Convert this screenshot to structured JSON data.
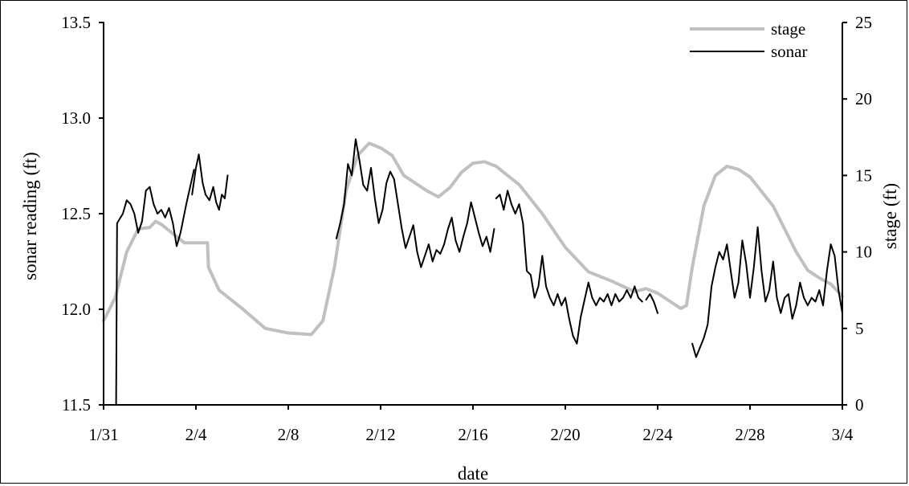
{
  "chart_data": {
    "type": "line",
    "title": "",
    "xlabel": "date",
    "ylabel_left": "sonar reading (ft)",
    "ylabel_right": "stage (ft)",
    "x_range": [
      "1/31",
      "3/4"
    ],
    "x_ticks": [
      "1/31",
      "2/4",
      "2/8",
      "2/12",
      "2/16",
      "2/20",
      "2/24",
      "2/28",
      "3/4"
    ],
    "ylim_left": [
      11.5,
      13.5
    ],
    "y_ticks_left": [
      "11.5",
      "12.0",
      "12.5",
      "13.0",
      "13.5"
    ],
    "ylim_right": [
      0,
      25
    ],
    "y_ticks_right": [
      "0",
      "5",
      "10",
      "15",
      "20",
      "25"
    ],
    "grid": false,
    "legend_position": "top-right",
    "series": [
      {
        "name": "stage",
        "axis": "right",
        "color": "#c0c0c0",
        "points": [
          [
            "1/31 00:00",
            5.5
          ],
          [
            "1/31 12:00",
            7.0
          ],
          [
            "2/1 00:00",
            10.0
          ],
          [
            "2/1 12:00",
            11.5
          ],
          [
            "2/2 00:00",
            11.6
          ],
          [
            "2/2 06:00",
            12.0
          ],
          [
            "2/2 12:00",
            11.8
          ],
          [
            "2/3 00:00",
            11.2
          ],
          [
            "2/3 12:00",
            10.6
          ],
          [
            "2/4 00:00",
            10.6
          ],
          [
            "2/4 12:00",
            10.6
          ],
          [
            "2/4 13:00",
            9.0
          ],
          [
            "2/5 00:00",
            7.5
          ],
          [
            "2/6 00:00",
            6.3
          ],
          [
            "2/7 00:00",
            5.0
          ],
          [
            "2/8 00:00",
            4.7
          ],
          [
            "2/9 00:00",
            4.6
          ],
          [
            "2/9 12:00",
            5.5
          ],
          [
            "2/10 00:00",
            9.0
          ],
          [
            "2/10 12:00",
            14.0
          ],
          [
            "2/11 00:00",
            16.3
          ],
          [
            "2/11 12:00",
            17.1
          ],
          [
            "2/12 00:00",
            16.8
          ],
          [
            "2/12 12:00",
            16.3
          ],
          [
            "2/13 00:00",
            15.0
          ],
          [
            "2/14 00:00",
            14.0
          ],
          [
            "2/14 12:00",
            13.6
          ],
          [
            "2/15 00:00",
            14.2
          ],
          [
            "2/15 12:00",
            15.2
          ],
          [
            "2/16 00:00",
            15.8
          ],
          [
            "2/16 12:00",
            15.9
          ],
          [
            "2/17 00:00",
            15.6
          ],
          [
            "2/18 00:00",
            14.4
          ],
          [
            "2/19 00:00",
            12.5
          ],
          [
            "2/20 00:00",
            10.3
          ],
          [
            "2/21 00:00",
            8.7
          ],
          [
            "2/22 00:00",
            8.1
          ],
          [
            "2/23 00:00",
            7.4
          ],
          [
            "2/23 12:00",
            7.6
          ],
          [
            "2/24 00:00",
            7.3
          ],
          [
            "2/24 12:00",
            6.8
          ],
          [
            "2/25 00:00",
            6.3
          ],
          [
            "2/25 06:00",
            6.5
          ],
          [
            "2/25 12:00",
            9.0
          ],
          [
            "2/26 00:00",
            13.0
          ],
          [
            "2/26 12:00",
            15.0
          ],
          [
            "2/27 00:00",
            15.6
          ],
          [
            "2/27 12:00",
            15.4
          ],
          [
            "2/28 00:00",
            14.9
          ],
          [
            "3/1 00:00",
            13.0
          ],
          [
            "3/2 00:00",
            10.0
          ],
          [
            "3/2 12:00",
            8.8
          ],
          [
            "3/3 00:00",
            8.3
          ],
          [
            "3/3 12:00",
            7.9
          ],
          [
            "3/4 00:00",
            7.1
          ]
        ]
      },
      {
        "name": "sonar",
        "axis": "left",
        "color": "#000000",
        "segments": [
          [
            [
              "1/31 00:00",
              11.5
            ],
            [
              "1/31 00:00",
              13.5
            ]
          ],
          [
            [
              "1/31 13:00",
              11.5
            ],
            [
              "1/31 14:00",
              12.45
            ],
            [
              "1/31 20:00",
              12.5
            ],
            [
              "2/1 00:00",
              12.57
            ],
            [
              "2/1 04:00",
              12.55
            ],
            [
              "2/1 08:00",
              12.5
            ],
            [
              "2/1 12:00",
              12.4
            ],
            [
              "2/1 16:00",
              12.46
            ],
            [
              "2/1 20:00",
              12.62
            ],
            [
              "2/2 00:00",
              12.64
            ],
            [
              "2/2 04:00",
              12.55
            ],
            [
              "2/2 08:00",
              12.5
            ],
            [
              "2/2 12:00",
              12.52
            ],
            [
              "2/2 16:00",
              12.48
            ],
            [
              "2/2 20:00",
              12.53
            ],
            [
              "2/3 00:00",
              12.45
            ],
            [
              "2/3 04:00",
              12.33
            ],
            [
              "2/3 08:00",
              12.4
            ],
            [
              "2/3 14:00",
              12.55
            ],
            [
              "2/3 22:00",
              12.73
            ]
          ],
          [
            [
              "2/3 20:00",
              12.6
            ],
            [
              "2/4 00:00",
              12.74
            ],
            [
              "2/4 03:00",
              12.81
            ],
            [
              "2/4 07:00",
              12.66
            ],
            [
              "2/4 10:00",
              12.6
            ],
            [
              "2/4 14:00",
              12.57
            ],
            [
              "2/4 18:00",
              12.64
            ],
            [
              "2/4 21:00",
              12.56
            ],
            [
              "2/5 00:00",
              12.52
            ],
            [
              "2/5 03:00",
              12.6
            ],
            [
              "2/5 06:00",
              12.58
            ],
            [
              "2/5 09:00",
              12.7
            ]
          ],
          [
            [
              "2/10 02:00",
              12.37
            ],
            [
              "2/10 06:00",
              12.45
            ],
            [
              "2/10 10:00",
              12.55
            ],
            [
              "2/10 14:00",
              12.76
            ],
            [
              "2/10 18:00",
              12.7
            ],
            [
              "2/10 22:00",
              12.89
            ],
            [
              "2/11 02:00",
              12.78
            ],
            [
              "2/11 06:00",
              12.65
            ],
            [
              "2/11 10:00",
              12.62
            ],
            [
              "2/11 14:00",
              12.74
            ],
            [
              "2/11 18:00",
              12.58
            ],
            [
              "2/11 22:00",
              12.45
            ],
            [
              "2/12 02:00",
              12.52
            ],
            [
              "2/12 06:00",
              12.66
            ],
            [
              "2/12 10:00",
              12.72
            ],
            [
              "2/12 14:00",
              12.68
            ],
            [
              "2/12 18:00",
              12.55
            ],
            [
              "2/12 22:00",
              12.42
            ],
            [
              "2/13 02:00",
              12.32
            ],
            [
              "2/13 06:00",
              12.38
            ],
            [
              "2/13 10:00",
              12.44
            ],
            [
              "2/13 14:00",
              12.3
            ],
            [
              "2/13 18:00",
              12.22
            ],
            [
              "2/13 22:00",
              12.28
            ],
            [
              "2/14 02:00",
              12.34
            ],
            [
              "2/14 06:00",
              12.25
            ],
            [
              "2/14 10:00",
              12.31
            ],
            [
              "2/14 14:00",
              12.29
            ],
            [
              "2/14 18:00",
              12.34
            ],
            [
              "2/14 22:00",
              12.42
            ],
            [
              "2/15 02:00",
              12.48
            ],
            [
              "2/15 06:00",
              12.36
            ],
            [
              "2/15 10:00",
              12.3
            ],
            [
              "2/15 14:00",
              12.38
            ],
            [
              "2/15 18:00",
              12.45
            ],
            [
              "2/15 22:00",
              12.56
            ],
            [
              "2/16 02:00",
              12.48
            ],
            [
              "2/16 06:00",
              12.4
            ],
            [
              "2/16 10:00",
              12.33
            ],
            [
              "2/16 14:00",
              12.38
            ],
            [
              "2/16 18:00",
              12.3
            ],
            [
              "2/16 22:00",
              12.42
            ]
          ],
          [
            [
              "2/17 00:00",
              12.58
            ],
            [
              "2/17 04:00",
              12.6
            ],
            [
              "2/17 08:00",
              12.52
            ],
            [
              "2/17 12:00",
              12.62
            ],
            [
              "2/17 16:00",
              12.55
            ],
            [
              "2/17 20:00",
              12.5
            ],
            [
              "2/18 00:00",
              12.55
            ],
            [
              "2/18 04:00",
              12.45
            ],
            [
              "2/18 08:00",
              12.2
            ],
            [
              "2/18 12:00",
              12.18
            ],
            [
              "2/18 16:00",
              12.06
            ],
            [
              "2/18 20:00",
              12.12
            ],
            [
              "2/19 00:00",
              12.28
            ],
            [
              "2/19 04:00",
              12.12
            ],
            [
              "2/19 08:00",
              12.06
            ],
            [
              "2/19 12:00",
              12.02
            ],
            [
              "2/19 16:00",
              12.08
            ],
            [
              "2/19 20:00",
              12.02
            ],
            [
              "2/20 00:00",
              12.06
            ],
            [
              "2/20 04:00",
              11.95
            ],
            [
              "2/20 08:00",
              11.86
            ],
            [
              "2/20 12:00",
              11.82
            ],
            [
              "2/20 16:00",
              11.96
            ],
            [
              "2/20 20:00",
              12.05
            ],
            [
              "2/21 00:00",
              12.14
            ],
            [
              "2/21 04:00",
              12.06
            ],
            [
              "2/21 08:00",
              12.02
            ],
            [
              "2/21 12:00",
              12.06
            ],
            [
              "2/21 16:00",
              12.04
            ],
            [
              "2/21 20:00",
              12.08
            ],
            [
              "2/22 00:00",
              12.02
            ],
            [
              "2/22 04:00",
              12.08
            ],
            [
              "2/22 08:00",
              12.04
            ],
            [
              "2/22 12:00",
              12.06
            ],
            [
              "2/22 16:00",
              12.1
            ],
            [
              "2/22 20:00",
              12.06
            ],
            [
              "2/23 00:00",
              12.12
            ],
            [
              "2/23 04:00",
              12.06
            ],
            [
              "2/23 08:00",
              12.04
            ]
          ],
          [
            [
              "2/23 12:00",
              12.05
            ],
            [
              "2/23 16:00",
              12.08
            ],
            [
              "2/23 20:00",
              12.04
            ],
            [
              "2/24 00:00",
              11.98
            ]
          ],
          [
            [
              "2/25 12:00",
              11.82
            ],
            [
              "2/25 16:00",
              11.75
            ],
            [
              "2/25 20:00",
              11.8
            ],
            [
              "2/26 00:00",
              11.85
            ],
            [
              "2/26 04:00",
              11.92
            ],
            [
              "2/26 08:00",
              12.12
            ],
            [
              "2/26 12:00",
              12.22
            ],
            [
              "2/26 16:00",
              12.3
            ],
            [
              "2/26 20:00",
              12.26
            ],
            [
              "2/27 00:00",
              12.34
            ],
            [
              "2/27 04:00",
              12.2
            ],
            [
              "2/27 08:00",
              12.06
            ],
            [
              "2/27 12:00",
              12.14
            ],
            [
              "2/27 16:00",
              12.36
            ],
            [
              "2/27 20:00",
              12.24
            ],
            [
              "2/28 00:00",
              12.06
            ],
            [
              "2/28 04:00",
              12.22
            ],
            [
              "2/28 08:00",
              12.43
            ],
            [
              "2/28 12:00",
              12.2
            ],
            [
              "2/28 16:00",
              12.04
            ],
            [
              "2/28 20:00",
              12.1
            ],
            [
              "3/1 00:00",
              12.25
            ],
            [
              "3/1 04:00",
              12.06
            ],
            [
              "3/1 08:00",
              11.98
            ],
            [
              "3/1 12:00",
              12.06
            ],
            [
              "3/1 16:00",
              12.08
            ],
            [
              "3/1 20:00",
              11.95
            ],
            [
              "3/2 00:00",
              12.02
            ],
            [
              "3/2 04:00",
              12.14
            ],
            [
              "3/2 08:00",
              12.06
            ],
            [
              "3/2 12:00",
              12.02
            ],
            [
              "3/2 16:00",
              12.06
            ],
            [
              "3/2 20:00",
              12.04
            ],
            [
              "3/3 00:00",
              12.1
            ],
            [
              "3/3 04:00",
              12.02
            ],
            [
              "3/3 08:00",
              12.2
            ],
            [
              "3/3 12:00",
              12.34
            ],
            [
              "3/3 16:00",
              12.28
            ],
            [
              "3/3 20:00",
              12.1
            ],
            [
              "3/4 00:00",
              11.98
            ]
          ]
        ]
      }
    ],
    "legend": [
      {
        "label": "stage",
        "color": "#c0c0c0"
      },
      {
        "label": "sonar",
        "color": "#000000"
      }
    ]
  }
}
